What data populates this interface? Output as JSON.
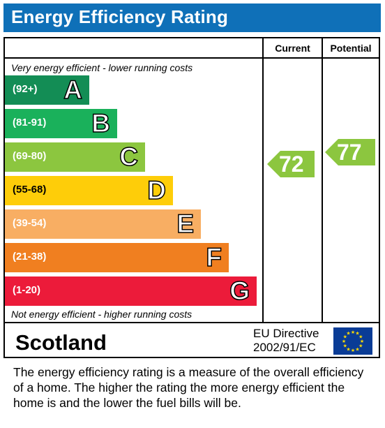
{
  "title": "Energy Efficiency Rating",
  "columns": {
    "current": "Current",
    "potential": "Potential"
  },
  "top_note": "Very energy efficient - lower running costs",
  "bottom_note": "Not energy efficient - higher running costs",
  "footer": {
    "country": "Scotland",
    "directive_line1": "EU Directive",
    "directive_line2": "2002/91/EC"
  },
  "description": "The energy efficiency rating is a measure of the overall efficiency of a home.  The higher the rating the more energy efficient the home is and the lower the fuel bills will be.",
  "icons": {
    "eu_flag": "eu-flag-icon"
  },
  "chart_data": {
    "type": "bar",
    "categories": [
      "A",
      "B",
      "C",
      "D",
      "E",
      "F",
      "G"
    ],
    "bands": [
      {
        "letter": "A",
        "range": "(92+)",
        "color": "#138d55"
      },
      {
        "letter": "B",
        "range": "(81-91)",
        "color": "#1ab15b"
      },
      {
        "letter": "C",
        "range": "(69-80)",
        "color": "#8cc63f"
      },
      {
        "letter": "D",
        "range": "(55-68)",
        "color": "#fecd09"
      },
      {
        "letter": "E",
        "range": "(39-54)",
        "color": "#f8ae63"
      },
      {
        "letter": "F",
        "range": "(21-38)",
        "color": "#f07f20"
      },
      {
        "letter": "G",
        "range": "(1-20)",
        "color": "#ec1b3a"
      }
    ],
    "current": {
      "value": 72,
      "band": "C",
      "color": "#8cc63f"
    },
    "potential": {
      "value": 77,
      "band": "C",
      "color": "#8cc63f"
    }
  }
}
